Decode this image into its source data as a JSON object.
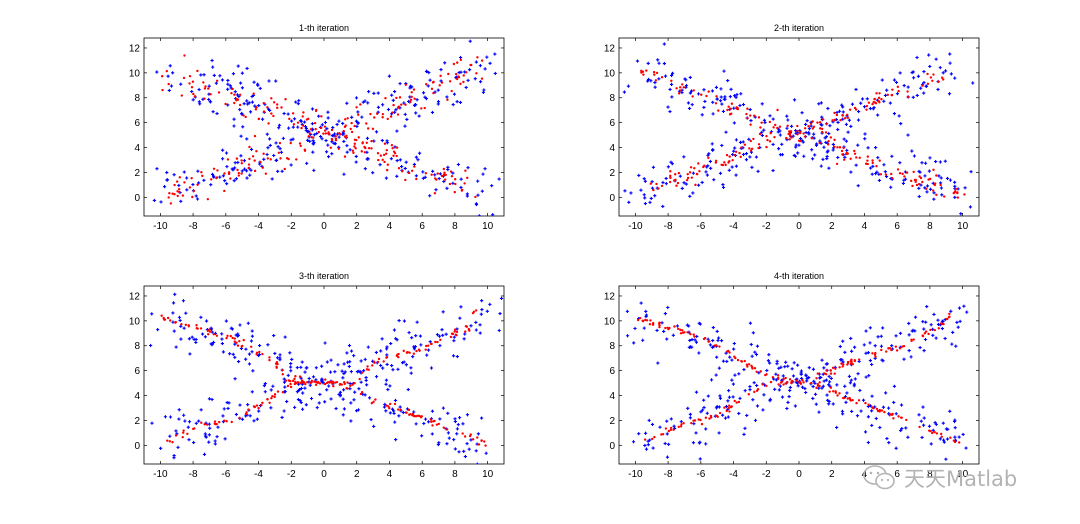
{
  "colors": {
    "data": "#0000ff",
    "curve": "#ff0000",
    "axis": "#000000"
  },
  "watermark": {
    "text": "天天Matlab",
    "icon": "wechat-icon"
  },
  "chart_data": [
    {
      "type": "scatter",
      "title": "1-th iteration",
      "xlim": [
        -11,
        11
      ],
      "ylim": [
        -1.5,
        12.8
      ],
      "xticks": [
        -10,
        -8,
        -6,
        -4,
        -2,
        0,
        2,
        4,
        6,
        8,
        10
      ],
      "yticks": [
        0,
        2,
        4,
        6,
        8,
        10,
        12
      ],
      "series": [
        {
          "color": "#0000ff",
          "description": "noisy samples around two crossing curves",
          "paths": [
            [
              [
                -10,
                10.2
              ],
              [
                -6,
                8.4
              ],
              [
                -2,
                6.3
              ],
              [
                0,
                5.0
              ],
              [
                2,
                4.0
              ],
              [
                6,
                2.1
              ],
              [
                10,
                0.4
              ]
            ],
            [
              [
                -10,
                0.2
              ],
              [
                -6,
                2.2
              ],
              [
                -2,
                4.0
              ],
              [
                0,
                5.0
              ],
              [
                2,
                6.2
              ],
              [
                6,
                8.2
              ],
              [
                10,
                10.4
              ]
            ]
          ],
          "spread": 1.05,
          "count": 380
        },
        {
          "color": "#ff0000",
          "description": "principal curve points, iteration 1",
          "paths": [
            [
              [
                -10,
                10.2
              ],
              [
                -6,
                8.4
              ],
              [
                -3,
                7.0
              ],
              [
                0,
                5.2
              ],
              [
                3,
                3.6
              ],
              [
                6,
                2.2
              ],
              [
                9.5,
                0.4
              ]
            ],
            [
              [
                -9.5,
                0.2
              ],
              [
                -6,
                2.0
              ],
              [
                -3,
                3.4
              ],
              [
                0,
                5.0
              ],
              [
                3,
                6.6
              ],
              [
                6,
                8.2
              ],
              [
                9.6,
                10.4
              ]
            ]
          ],
          "spread": 0.65,
          "count": 300
        }
      ]
    },
    {
      "type": "scatter",
      "title": "2-th iteration",
      "xlim": [
        -11,
        11
      ],
      "ylim": [
        -1.5,
        12.8
      ],
      "xticks": [
        -10,
        -8,
        -6,
        -4,
        -2,
        0,
        2,
        4,
        6,
        8,
        10
      ],
      "yticks": [
        0,
        2,
        4,
        6,
        8,
        10,
        12
      ],
      "series": [
        {
          "color": "#0000ff",
          "description": "noisy samples around two crossing curves",
          "paths": [
            [
              [
                -10,
                10.2
              ],
              [
                -6,
                8.4
              ],
              [
                -2,
                6.3
              ],
              [
                0,
                5.0
              ],
              [
                2,
                4.0
              ],
              [
                6,
                2.1
              ],
              [
                10,
                0.4
              ]
            ],
            [
              [
                -10,
                0.2
              ],
              [
                -6,
                2.2
              ],
              [
                -2,
                4.0
              ],
              [
                0,
                5.0
              ],
              [
                2,
                6.2
              ],
              [
                6,
                8.2
              ],
              [
                10,
                10.4
              ]
            ]
          ],
          "spread": 1.05,
          "count": 380
        },
        {
          "color": "#ff0000",
          "description": "principal curve points, iteration 2",
          "paths": [
            [
              [
                -10,
                10.2
              ],
              [
                -7,
                8.9
              ],
              [
                -4,
                7.2
              ],
              [
                -2,
                6.0
              ],
              [
                0,
                5.0
              ],
              [
                2,
                4.6
              ],
              [
                2.5,
                3.6
              ],
              [
                6,
                2.0
              ],
              [
                10,
                0.1
              ]
            ],
            [
              [
                -9.6,
                0.1
              ],
              [
                -8.5,
                0.8
              ],
              [
                -7.5,
                1.6
              ],
              [
                -5,
                2.6
              ],
              [
                -2.5,
                4.4
              ],
              [
                0,
                5.2
              ],
              [
                2,
                6.2
              ],
              [
                5,
                8.0
              ],
              [
                8,
                9.2
              ],
              [
                9.3,
                10.6
              ]
            ]
          ],
          "spread": 0.32,
          "count": 260
        }
      ]
    },
    {
      "type": "scatter",
      "title": "3-th iteration",
      "xlim": [
        -11,
        11
      ],
      "ylim": [
        -1.5,
        12.8
      ],
      "xticks": [
        -10,
        -8,
        -6,
        -4,
        -2,
        0,
        2,
        4,
        6,
        8,
        10
      ],
      "yticks": [
        0,
        2,
        4,
        6,
        8,
        10,
        12
      ],
      "series": [
        {
          "color": "#0000ff",
          "description": "noisy samples around two crossing curves",
          "paths": [
            [
              [
                -10,
                10.2
              ],
              [
                -6,
                8.4
              ],
              [
                -2,
                6.3
              ],
              [
                0,
                5.0
              ],
              [
                2,
                4.0
              ],
              [
                6,
                2.1
              ],
              [
                10,
                0.4
              ]
            ],
            [
              [
                -10,
                0.2
              ],
              [
                -6,
                2.2
              ],
              [
                -2,
                4.0
              ],
              [
                0,
                5.0
              ],
              [
                2,
                6.2
              ],
              [
                6,
                8.2
              ],
              [
                10,
                10.4
              ]
            ]
          ],
          "spread": 1.05,
          "count": 380
        },
        {
          "color": "#ff0000",
          "description": "principal curve points, iteration 3",
          "paths": [
            [
              [
                -10,
                10.2
              ],
              [
                -6,
                8.8
              ],
              [
                -3,
                6.8
              ],
              [
                -2.5,
                5.4
              ],
              [
                0,
                5.0
              ],
              [
                2,
                4.8
              ],
              [
                2.3,
                4.0
              ],
              [
                6,
                2.2
              ],
              [
                10,
                0.1
              ]
            ],
            [
              [
                -9.7,
                0.1
              ],
              [
                -8,
                1.3
              ],
              [
                -5,
                2.4
              ],
              [
                -2.5,
                4.4
              ],
              [
                -2,
                5.0
              ],
              [
                2,
                5.2
              ],
              [
                3,
                6.6
              ],
              [
                6,
                7.8
              ],
              [
                8.8,
                9.4
              ],
              [
                9.3,
                10.9
              ]
            ]
          ],
          "spread": 0.14,
          "count": 240
        }
      ]
    },
    {
      "type": "scatter",
      "title": "4-th iteration",
      "xlim": [
        -11,
        11
      ],
      "ylim": [
        -1.5,
        12.8
      ],
      "xticks": [
        -10,
        -8,
        -6,
        -4,
        -2,
        0,
        2,
        4,
        6,
        8,
        10
      ],
      "yticks": [
        0,
        2,
        4,
        6,
        8,
        10,
        12
      ],
      "series": [
        {
          "color": "#0000ff",
          "description": "noisy samples around two crossing curves",
          "paths": [
            [
              [
                -10,
                10.2
              ],
              [
                -6,
                8.4
              ],
              [
                -2,
                6.3
              ],
              [
                0,
                5.0
              ],
              [
                2,
                4.0
              ],
              [
                6,
                2.1
              ],
              [
                10,
                0.4
              ]
            ],
            [
              [
                -10,
                0.2
              ],
              [
                -6,
                2.2
              ],
              [
                -2,
                4.0
              ],
              [
                0,
                5.0
              ],
              [
                2,
                6.2
              ],
              [
                6,
                8.2
              ],
              [
                10,
                10.4
              ]
            ]
          ],
          "spread": 1.05,
          "count": 380
        },
        {
          "color": "#ff0000",
          "description": "principal curve points, iteration 4",
          "paths": [
            [
              [
                -10,
                10.2
              ],
              [
                -6,
                8.7
              ],
              [
                -2,
                5.6
              ],
              [
                0,
                5.0
              ],
              [
                1.5,
                4.8
              ],
              [
                2,
                4.4
              ],
              [
                2.4,
                4.1
              ],
              [
                6,
                2.3
              ],
              [
                10,
                0.1
              ]
            ],
            [
              [
                -9.7,
                0.1
              ],
              [
                -8,
                1.2
              ],
              [
                -5,
                2.4
              ],
              [
                -2,
                5.0
              ],
              [
                0,
                5.1
              ],
              [
                1.5,
                5.6
              ],
              [
                3,
                6.6
              ],
              [
                6,
                7.9
              ],
              [
                8.8,
                9.6
              ],
              [
                9.3,
                10.9
              ]
            ]
          ],
          "spread": 0.12,
          "count": 240
        }
      ]
    }
  ]
}
